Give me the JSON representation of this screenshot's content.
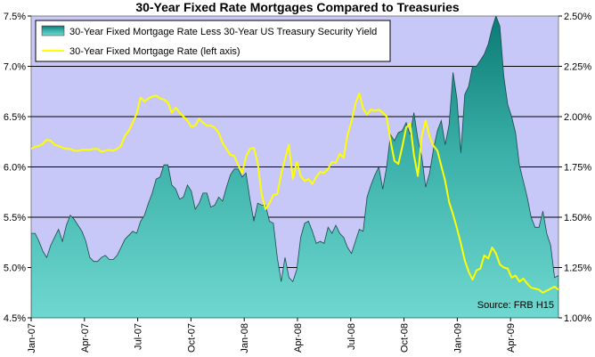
{
  "chart_data": {
    "type": "area",
    "title": "30-Year Fixed Rate Mortgages Compared to Treasuries",
    "left_axis": {
      "min": 4.5,
      "max": 7.5,
      "ticks": [
        "4.5%",
        "5.0%",
        "5.5%",
        "6.0%",
        "6.5%",
        "7.0%",
        "7.5%"
      ]
    },
    "right_axis": {
      "min": 1.0,
      "max": 2.5,
      "ticks": [
        "1.00%",
        "1.25%",
        "1.50%",
        "1.75%",
        "2.00%",
        "2.25%",
        "2.50%"
      ]
    },
    "x_labels": [
      "Jan-07",
      "Apr-07",
      "Jul-07",
      "Oct-07",
      "Jan-08",
      "Apr-08",
      "Jul-08",
      "Oct-08",
      "Jan-09",
      "Apr-09"
    ],
    "gridlines": true,
    "legend_position": "top-left",
    "colors": {
      "plot_bg": "#c8c8f8",
      "area_fill": "#0e8e86",
      "area_light": "#66d8d0",
      "line": "#ffff00"
    },
    "series": [
      {
        "name": "30-Year Fixed Mortgage Rate Less 30-Year US Treasury Security Yield",
        "axis": "right",
        "type": "area",
        "values": [
          1.42,
          1.42,
          1.38,
          1.33,
          1.3,
          1.36,
          1.4,
          1.44,
          1.38,
          1.46,
          1.51,
          1.49,
          1.46,
          1.43,
          1.38,
          1.3,
          1.28,
          1.28,
          1.3,
          1.31,
          1.29,
          1.29,
          1.31,
          1.35,
          1.39,
          1.41,
          1.43,
          1.42,
          1.48,
          1.51,
          1.57,
          1.62,
          1.69,
          1.7,
          1.76,
          1.76,
          1.66,
          1.64,
          1.59,
          1.6,
          1.66,
          1.63,
          1.54,
          1.57,
          1.62,
          1.62,
          1.55,
          1.56,
          1.6,
          1.58,
          1.65,
          1.71,
          1.74,
          1.74,
          1.7,
          1.72,
          1.59,
          1.48,
          1.57,
          1.56,
          1.56,
          1.48,
          1.47,
          1.3,
          1.18,
          1.3,
          1.2,
          1.18,
          1.24,
          1.4,
          1.47,
          1.48,
          1.43,
          1.37,
          1.38,
          1.37,
          1.45,
          1.42,
          1.46,
          1.42,
          1.4,
          1.35,
          1.32,
          1.38,
          1.44,
          1.43,
          1.6,
          1.66,
          1.71,
          1.75,
          1.64,
          1.75,
          1.91,
          1.88,
          1.92,
          1.93,
          1.97,
          1.91,
          2.02,
          1.89,
          1.8,
          1.65,
          1.72,
          1.84,
          1.93,
          1.98,
          1.86,
          1.96,
          2.22,
          2.09,
          1.82,
          2.11,
          2.15,
          2.25,
          2.25,
          2.28,
          2.31,
          2.36,
          2.44,
          2.5,
          2.45,
          2.2,
          2.06,
          2.0,
          1.92,
          1.76,
          1.68,
          1.6,
          1.5,
          1.45,
          1.45,
          1.53,
          1.42,
          1.36,
          1.2,
          1.21
        ]
      },
      {
        "name": "30-Year Fixed Mortgage Rate (left axis)",
        "axis": "left",
        "type": "line",
        "values": [
          6.18,
          6.2,
          6.21,
          6.23,
          6.27,
          6.26,
          6.22,
          6.21,
          6.19,
          6.18,
          6.18,
          6.16,
          6.16,
          6.17,
          6.17,
          6.17,
          6.18,
          6.18,
          6.15,
          6.16,
          6.17,
          6.16,
          6.18,
          6.21,
          6.31,
          6.36,
          6.44,
          6.53,
          6.69,
          6.65,
          6.68,
          6.7,
          6.71,
          6.68,
          6.67,
          6.64,
          6.54,
          6.59,
          6.54,
          6.5,
          6.46,
          6.4,
          6.41,
          6.48,
          6.44,
          6.41,
          6.41,
          6.39,
          6.34,
          6.24,
          6.18,
          6.12,
          6.11,
          6.02,
          5.94,
          6.1,
          6.18,
          6.19,
          6.04,
          5.73,
          5.58,
          5.64,
          5.72,
          5.73,
          5.93,
          6.08,
          6.22,
          5.88,
          6.05,
          5.91,
          5.86,
          5.88,
          5.83,
          5.9,
          5.95,
          5.94,
          5.98,
          6.05,
          6.04,
          6.13,
          6.09,
          6.32,
          6.45,
          6.63,
          6.73,
          6.58,
          6.52,
          6.57,
          6.56,
          6.57,
          6.54,
          6.5,
          6.26,
          6.06,
          6.03,
          6.2,
          6.39,
          6.43,
          6.12,
          5.91,
          6.31,
          6.46,
          6.3,
          6.21,
          6.16,
          6.01,
          5.86,
          5.65,
          5.53,
          5.39,
          5.24,
          5.07,
          4.96,
          4.88,
          4.97,
          4.99,
          5.12,
          5.09,
          5.2,
          5.14,
          5.03,
          5.0,
          4.99,
          4.9,
          4.92,
          4.86,
          4.89,
          4.84,
          4.8,
          4.79,
          4.78,
          4.75,
          4.77,
          4.79,
          4.81,
          4.78
        ]
      }
    ],
    "legend": [
      "30-Year Fixed Mortgage Rate Less 30-Year US Treasury Security Yield",
      "30-Year Fixed Mortgage Rate (left axis)"
    ],
    "annotation": "Source: FRB H15"
  }
}
